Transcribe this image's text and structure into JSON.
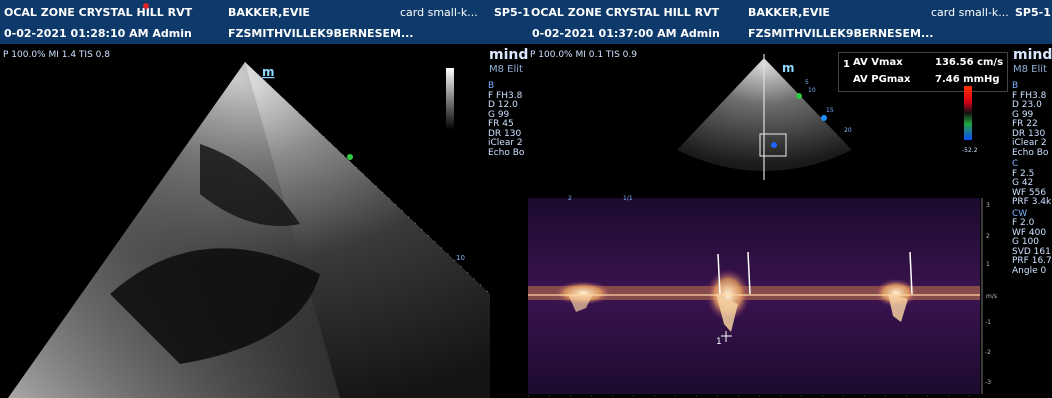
{
  "left_panel": {
    "header": {
      "facility": "OCAL ZONE CRYSTAL HILL RVT",
      "patient": "BAKKER,EVIE",
      "tag": "card small-k...",
      "date": "0-02-2021 01:28:10 AM Admin",
      "id": "FZSMITHVILLEK9BERNESEM..."
    },
    "info_line": "P 100.0%  MI 1.4  TIS 0.8",
    "scale_marker": "m",
    "depth_label": "10"
  },
  "right_panel": {
    "header": {
      "code": "SP5-1",
      "facility": "OCAL ZONE CRYSTAL HILL RVT",
      "patient": "BAKKER,EVIE",
      "tag": "card small-k...",
      "code2": "SP5-1",
      "date": "0-02-2021 01:37:00 AM Admin",
      "id": "FZSMITHVILLEK9BERNESEM..."
    },
    "brand": "mind",
    "model": "M8 Elit",
    "info_line": "P 100.0%  MI 0.1  TIS 0.9",
    "scale_marker": "m",
    "brand2": "mind",
    "model2": "M8 Elit",
    "measurements": {
      "index": "1",
      "av_vmax_label": "AV Vmax",
      "av_vmax_value": "136.56 cm/s",
      "av_pgmax_label": "AV PGmax",
      "av_pgmax_value": "7.46 mmHg"
    },
    "color_scale_bottom": "-52.2",
    "sector_depth_labels": [
      "5",
      "10",
      "15",
      "20"
    ],
    "doppler": {
      "timeline": [
        "2",
        "1/1"
      ],
      "y_axis": [
        "3",
        "2",
        "1",
        "m/s",
        "-1",
        "-2",
        "-3"
      ],
      "cursor_label": "1"
    }
  },
  "parameters_mid": {
    "b_title": "B",
    "b_lines": [
      "F FH3.8",
      "D 12.0",
      "G 99",
      "FR 45",
      "DR 130",
      "iClear 2",
      "Echo Bo"
    ]
  },
  "parameters_right": {
    "b_title": "B",
    "b_lines": [
      "F FH3.8",
      "D 23.0",
      "G 99",
      "FR 22",
      "DR 130",
      "iClear 2",
      "Echo Bo"
    ],
    "c_title": "C",
    "c_lines": [
      "F 2.5",
      "G 42",
      "WF 556",
      "PRF 3.4k"
    ],
    "cw_title": "CW",
    "cw_lines": [
      "F 2.0",
      "WF 400",
      "G 100",
      "SVD 161",
      "PRF 16.7",
      "Angle 0"
    ]
  },
  "colors": {
    "header_bg": "#0e3a6b",
    "doppler_bg": "#2a0a3a",
    "spectrum": "#ffd7a0"
  }
}
